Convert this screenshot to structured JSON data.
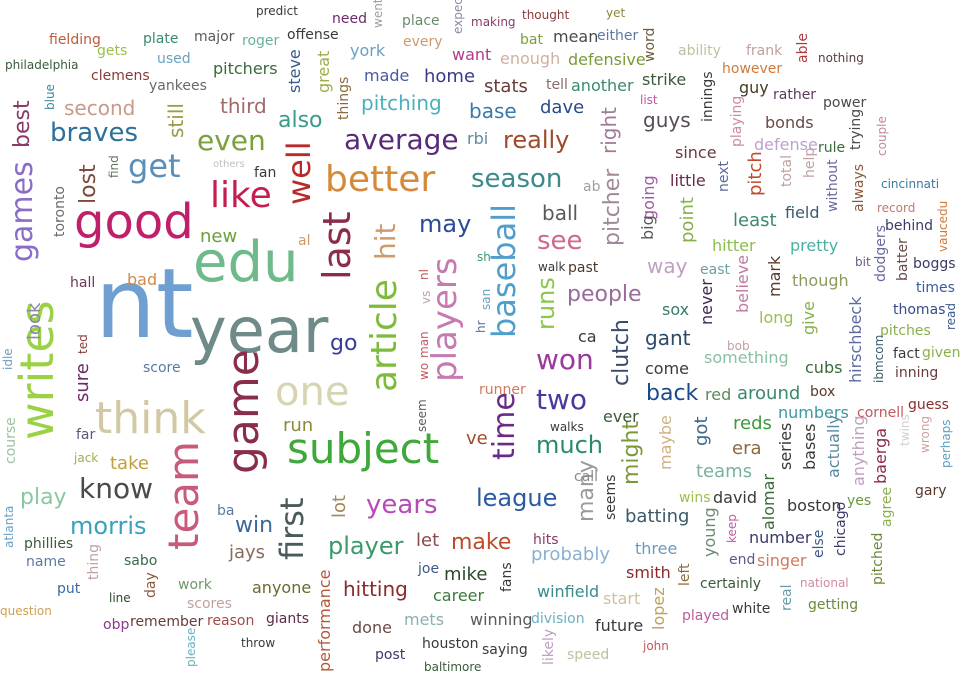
{
  "words": [
    {
      "text": "nt",
      "color": "#6f9fd0"
    },
    {
      "text": "edu",
      "color": "#6fba8a"
    },
    {
      "text": "year",
      "color": "#6e8a89"
    },
    {
      "text": "good",
      "color": "#c0206a"
    },
    {
      "text": "writes",
      "color": "#9bd144"
    },
    {
      "text": "subject",
      "color": "#3fa83a"
    },
    {
      "text": "think",
      "color": "#d2c9a4"
    },
    {
      "text": "game",
      "color": "#8a2d48"
    },
    {
      "text": "one",
      "color": "#d7d5b1"
    },
    {
      "text": "team",
      "color": "#c85a7a"
    },
    {
      "text": "like",
      "color": "#c41f4f"
    },
    {
      "text": "better",
      "color": "#d58a3a"
    },
    {
      "text": "article",
      "color": "#7cbc3a"
    },
    {
      "text": "players",
      "color": "#c57ab0"
    },
    {
      "text": "baseball",
      "color": "#4f9ecb"
    },
    {
      "text": "last",
      "color": "#8a2d48"
    },
    {
      "text": "games",
      "color": "#8a6cc9"
    },
    {
      "text": "get",
      "color": "#5a8fb8"
    },
    {
      "text": "well",
      "color": "#b92b2b"
    },
    {
      "text": "average",
      "color": "#5a2a7a"
    },
    {
      "text": "season",
      "color": "#3a8a8a"
    },
    {
      "text": "braves",
      "color": "#2f6f99"
    },
    {
      "text": "even",
      "color": "#7aa03a"
    },
    {
      "text": "know",
      "color": "#4a4a4a"
    },
    {
      "text": "time",
      "color": "#6a2a8a"
    },
    {
      "text": "two",
      "color": "#4a3aa0"
    },
    {
      "text": "won",
      "color": "#9a3a9a"
    },
    {
      "text": "league",
      "color": "#2a5aa0"
    },
    {
      "text": "much",
      "color": "#2a8a6a"
    },
    {
      "text": "years",
      "color": "#b84ab8"
    },
    {
      "text": "first",
      "color": "#4a5a5a"
    },
    {
      "text": "player",
      "color": "#3a9a6a"
    },
    {
      "text": "morris",
      "color": "#3aa0c0"
    },
    {
      "text": "runs",
      "color": "#8ac84a"
    },
    {
      "text": "see",
      "color": "#d06a8a"
    },
    {
      "text": "really",
      "color": "#a04a2a"
    },
    {
      "text": "people",
      "color": "#9a6a9a"
    },
    {
      "text": "clutch",
      "color": "#3a4a6a"
    },
    {
      "text": "hit",
      "color": "#d09a6a"
    },
    {
      "text": "may",
      "color": "#2a4a9a"
    },
    {
      "text": "back",
      "color": "#1a4a8a"
    },
    {
      "text": "make",
      "color": "#c04a2a"
    },
    {
      "text": "might",
      "color": "#7a9a3a"
    },
    {
      "text": "play",
      "color": "#8ac8a0"
    },
    {
      "text": "go",
      "color": "#3a3a9a"
    },
    {
      "text": "win",
      "color": "#3a6a9a"
    },
    {
      "text": "pitcher",
      "color": "#a08a9a"
    },
    {
      "text": "many",
      "color": "#9a9a9a"
    },
    {
      "text": "lost",
      "color": "#7a4a3a"
    },
    {
      "text": "ball",
      "color": "#5a5a5a"
    },
    {
      "text": "hitting",
      "color": "#8a2a2a"
    },
    {
      "text": "base",
      "color": "#3a7aaa"
    },
    {
      "text": "gant",
      "color": "#2a4a6a"
    },
    {
      "text": "also",
      "color": "#3a9a8a"
    },
    {
      "text": "best",
      "color": "#8a3a6a"
    },
    {
      "text": "second",
      "color": "#c89a8a"
    },
    {
      "text": "third",
      "color": "#a06a6a"
    },
    {
      "text": "still",
      "color": "#9a9a4a"
    },
    {
      "text": "new",
      "color": "#6aa03a"
    },
    {
      "text": "pitching",
      "color": "#4ab0c0"
    },
    {
      "text": "look",
      "color": "#8a8aaa"
    },
    {
      "text": "sure",
      "color": "#6a2a6a"
    },
    {
      "text": "take",
      "color": "#c0a03a"
    },
    {
      "text": "run",
      "color": "#8a8a3a"
    },
    {
      "text": "way",
      "color": "#c0a0c0"
    },
    {
      "text": "lot",
      "color": "#a08a5a"
    },
    {
      "text": "jays",
      "color": "#8a6a5a"
    },
    {
      "text": "let",
      "color": "#8a4a4a"
    },
    {
      "text": "mike",
      "color": "#2a4a2a"
    },
    {
      "text": "probably",
      "color": "#8ab0d0"
    },
    {
      "text": "stats",
      "color": "#6a3a3a"
    },
    {
      "text": "right",
      "color": "#a07a9a"
    },
    {
      "text": "dave",
      "color": "#2a4a8a"
    },
    {
      "text": "pretty",
      "color": "#4ab0a0"
    },
    {
      "text": "though",
      "color": "#8a9a5a"
    },
    {
      "text": "long",
      "color": "#9ac04a"
    },
    {
      "text": "around",
      "color": "#3a8a6a"
    },
    {
      "text": "something",
      "color": "#8ac0a0"
    },
    {
      "text": "reds",
      "color": "#3a9a3a"
    },
    {
      "text": "cubs",
      "color": "#3a6a3a"
    },
    {
      "text": "numbers",
      "color": "#3a9aa0"
    },
    {
      "text": "teams",
      "color": "#7ab0a0"
    },
    {
      "text": "batting",
      "color": "#3a5a6a"
    },
    {
      "text": "three",
      "color": "#6a9ac0"
    },
    {
      "text": "winfield",
      "color": "#3a8a8a"
    },
    {
      "text": "performance",
      "color": "#b05a3a"
    },
    {
      "text": "career",
      "color": "#3a7a3a"
    },
    {
      "text": "winning",
      "color": "#5a5a5a"
    },
    {
      "text": "division",
      "color": "#6ab0c0"
    },
    {
      "text": "future",
      "color": "#3a3a3a"
    },
    {
      "text": "smith",
      "color": "#8a2a2a"
    },
    {
      "text": "start",
      "color": "#d0c0a0"
    },
    {
      "text": "mets",
      "color": "#8ab0b0"
    },
    {
      "text": "done",
      "color": "#6a4a4a"
    },
    {
      "text": "anyone",
      "color": "#6a6a2a"
    },
    {
      "text": "giants",
      "color": "#5a2a4a"
    },
    {
      "text": "reason",
      "color": "#a04a4a"
    },
    {
      "text": "scores",
      "color": "#c0a0a0"
    },
    {
      "text": "work",
      "color": "#6a9a6a"
    },
    {
      "text": "remember",
      "color": "#6a3a3a"
    },
    {
      "text": "day",
      "color": "#8a5a3a"
    },
    {
      "text": "sabo",
      "color": "#3a6a4a"
    },
    {
      "text": "name",
      "color": "#5a7aa0"
    },
    {
      "text": "phillies",
      "color": "#3a5a3a"
    },
    {
      "text": "put",
      "color": "#3a6aa0"
    },
    {
      "text": "line",
      "color": "#2a4a2a"
    },
    {
      "text": "obp",
      "color": "#8a3a8a"
    },
    {
      "text": "question",
      "color": "#d0a050"
    },
    {
      "text": "course",
      "color": "#a0c0a0"
    },
    {
      "text": "far",
      "color": "#5a5a7a"
    },
    {
      "text": "score",
      "color": "#5a7aa0"
    },
    {
      "text": "hall",
      "color": "#6a3a5a"
    },
    {
      "text": "bad",
      "color": "#d08a4a"
    },
    {
      "text": "fan",
      "color": "#3a3a3a"
    },
    {
      "text": "al",
      "color": "#d09a6a"
    },
    {
      "text": "find",
      "color": "#5a7a5a"
    },
    {
      "text": "toronto",
      "color": "#6a6a6a"
    },
    {
      "text": "major",
      "color": "#5a5a5a"
    },
    {
      "text": "plate",
      "color": "#3a8a6a"
    },
    {
      "text": "fielding",
      "color": "#c05a3a"
    },
    {
      "text": "philadelphia",
      "color": "#3a5a3a"
    },
    {
      "text": "gets",
      "color": "#9ac04a"
    },
    {
      "text": "clemens",
      "color": "#8a3a3a"
    },
    {
      "text": "yankees",
      "color": "#6a6a6a"
    },
    {
      "text": "used",
      "color": "#6aa0c0"
    },
    {
      "text": "roger",
      "color": "#6ab0a0"
    },
    {
      "text": "pitchers",
      "color": "#3a6a3a"
    },
    {
      "text": "offense",
      "color": "#3a3a3a"
    },
    {
      "text": "predict",
      "color": "#3a3a3a"
    },
    {
      "text": "need",
      "color": "#6a2a6a"
    },
    {
      "text": "went",
      "color": "#a0a0a0"
    },
    {
      "text": "place",
      "color": "#6a8a6a"
    },
    {
      "text": "expect",
      "color": "#8a8aaa"
    },
    {
      "text": "making",
      "color": "#8a3a6a"
    },
    {
      "text": "thought",
      "color": "#8a3a3a"
    },
    {
      "text": "yet",
      "color": "#8a8a3a"
    },
    {
      "text": "york",
      "color": "#6aa0c0"
    },
    {
      "text": "every",
      "color": "#d09a6a"
    },
    {
      "text": "bat",
      "color": "#7aa03a"
    },
    {
      "text": "mean",
      "color": "#4a4a4a"
    },
    {
      "text": "either",
      "color": "#5a7aa0"
    },
    {
      "text": "want",
      "color": "#b03a8a"
    },
    {
      "text": "enough",
      "color": "#d0b0a0"
    },
    {
      "text": "defensive",
      "color": "#7a9a3a"
    },
    {
      "text": "steve",
      "color": "#3a5a8a"
    },
    {
      "text": "great",
      "color": "#9ab04a"
    },
    {
      "text": "made",
      "color": "#4a5aa0"
    },
    {
      "text": "home",
      "color": "#3a3a8a"
    },
    {
      "text": "things",
      "color": "#8a6a3a"
    },
    {
      "text": "word",
      "color": "#6a5a3a"
    },
    {
      "text": "ability",
      "color": "#c0c0a0"
    },
    {
      "text": "frank",
      "color": "#c0a0a0"
    },
    {
      "text": "able",
      "color": "#b03a3a"
    },
    {
      "text": "nothing",
      "color": "#5a3a3a"
    },
    {
      "text": "however",
      "color": "#d07a3a"
    },
    {
      "text": "guy",
      "color": "#4a3a2a"
    },
    {
      "text": "rather",
      "color": "#5a3a5a"
    },
    {
      "text": "power",
      "color": "#4a4a4a"
    },
    {
      "text": "another",
      "color": "#3a8a6a"
    },
    {
      "text": "strike",
      "color": "#3a5a3a"
    },
    {
      "text": "list",
      "color": "#c05aa0"
    },
    {
      "text": "innings",
      "color": "#3a3a3a"
    },
    {
      "text": "playing",
      "color": "#d08aa0"
    },
    {
      "text": "bonds",
      "color": "#6a4a4a"
    },
    {
      "text": "defense",
      "color": "#c0a0d0"
    },
    {
      "text": "rule",
      "color": "#3a6a3a"
    },
    {
      "text": "trying",
      "color": "#4a4a4a"
    },
    {
      "text": "couple",
      "color": "#c08aa0"
    },
    {
      "text": "tell",
      "color": "#8a6a6a"
    },
    {
      "text": "rbi",
      "color": "#5a8aa0"
    },
    {
      "text": "guys",
      "color": "#5a4a5a"
    },
    {
      "text": "since",
      "color": "#6a3a3a"
    },
    {
      "text": "pitch",
      "color": "#c04a2a"
    },
    {
      "text": "total",
      "color": "#c0a0a0"
    },
    {
      "text": "help",
      "color": "#c0a0a0"
    },
    {
      "text": "without",
      "color": "#6a6aa0"
    },
    {
      "text": "always",
      "color": "#8a5a3a"
    },
    {
      "text": "cincinnati",
      "color": "#3a7aa0"
    },
    {
      "text": "ab",
      "color": "#a0a0a0"
    },
    {
      "text": "going",
      "color": "#a05aa0"
    },
    {
      "text": "little",
      "color": "#6a2a4a"
    },
    {
      "text": "next",
      "color": "#5a6aa0"
    },
    {
      "text": "field",
      "color": "#3a5a6a"
    },
    {
      "text": "record",
      "color": "#c07a6a"
    },
    {
      "text": "behind",
      "color": "#3a3a6a"
    },
    {
      "text": "others",
      "color": "#c0c0c0"
    },
    {
      "text": "big",
      "color": "#5a5a5a"
    },
    {
      "text": "point",
      "color": "#8ab04a"
    },
    {
      "text": "least",
      "color": "#3a8a6a"
    },
    {
      "text": "hitter",
      "color": "#8ac04a"
    },
    {
      "text": "dodgers",
      "color": "#6a6aa0"
    },
    {
      "text": "bit",
      "color": "#6a5a8a"
    },
    {
      "text": "batter",
      "color": "#6a4a4a"
    },
    {
      "text": "boggs",
      "color": "#3a3a6a"
    },
    {
      "text": "times",
      "color": "#3a5aa0"
    },
    {
      "text": "vaucedu",
      "color": "#d07a3a"
    },
    {
      "text": "sh",
      "color": "#3a9a6a"
    },
    {
      "text": "walk",
      "color": "#3a3a3a"
    },
    {
      "text": "past",
      "color": "#4a3a2a"
    },
    {
      "text": "east",
      "color": "#6aa0a0"
    },
    {
      "text": "believe",
      "color": "#c07aa0"
    },
    {
      "text": "mark",
      "color": "#5a3a2a"
    },
    {
      "text": "sox",
      "color": "#3a7a6a"
    },
    {
      "text": "never",
      "color": "#3a2a4a"
    },
    {
      "text": "give",
      "color": "#8ab04a"
    },
    {
      "text": "hirschbeck",
      "color": "#5a6aa0"
    },
    {
      "text": "thomas",
      "color": "#3a4a8a"
    },
    {
      "text": "pitches",
      "color": "#8ab04a"
    },
    {
      "text": "read",
      "color": "#3a5a8a"
    },
    {
      "text": "nl",
      "color": "#c05a5a"
    },
    {
      "text": "vs",
      "color": "#c0a0a0"
    },
    {
      "text": "san",
      "color": "#6aa0c0"
    },
    {
      "text": "hr",
      "color": "#5a6aa0"
    },
    {
      "text": "man",
      "color": "#c05a5a"
    },
    {
      "text": "wo",
      "color": "#c05a5a"
    },
    {
      "text": "ted",
      "color": "#8a3a3a"
    },
    {
      "text": "idle",
      "color": "#6aa0c0"
    },
    {
      "text": "ca",
      "color": "#3a3a3a"
    },
    {
      "text": "come",
      "color": "#3a3a3a"
    },
    {
      "text": "bob",
      "color": "#c0a0a0"
    },
    {
      "text": "fact",
      "color": "#3a3a3a"
    },
    {
      "text": "given",
      "color": "#8ab04a"
    },
    {
      "text": "ibmcom",
      "color": "#3a5a6a"
    },
    {
      "text": "inning",
      "color": "#6a3a3a"
    },
    {
      "text": "red",
      "color": "#5a8a5a"
    },
    {
      "text": "box",
      "color": "#5a3a2a"
    },
    {
      "text": "runner",
      "color": "#d07a5a"
    },
    {
      "text": "seem",
      "color": "#5a5a5a"
    },
    {
      "text": "guess",
      "color": "#8a2a2a"
    },
    {
      "text": "ever",
      "color": "#3a5a3a"
    },
    {
      "text": "walks",
      "color": "#3a3a3a"
    },
    {
      "text": "ve",
      "color": "#a04a2a"
    },
    {
      "text": "got",
      "color": "#3a6a8a"
    },
    {
      "text": "maybe",
      "color": "#d0b080"
    },
    {
      "text": "era",
      "color": "#8a6a3a"
    },
    {
      "text": "series",
      "color": "#3a3a3a"
    },
    {
      "text": "bases",
      "color": "#3a3a3a"
    },
    {
      "text": "actually",
      "color": "#5a8aa0"
    },
    {
      "text": "anything",
      "color": "#c0a0c0"
    },
    {
      "text": "cornell",
      "color": "#c05a5a"
    },
    {
      "text": "twins",
      "color": "#d0d0d0"
    },
    {
      "text": "wrong",
      "color": "#d0a0a0"
    },
    {
      "text": "perhaps",
      "color": "#5aa0c0"
    },
    {
      "text": "baerga",
      "color": "#8a2a4a"
    },
    {
      "text": "jack",
      "color": "#9ab04a"
    },
    {
      "text": "call",
      "color": "#8a8a8a"
    },
    {
      "text": "seems",
      "color": "#3a3a3a"
    },
    {
      "text": "wins",
      "color": "#9ac04a"
    },
    {
      "text": "david",
      "color": "#3a3a3a"
    },
    {
      "text": "alomar",
      "color": "#3a6a3a"
    },
    {
      "text": "boston",
      "color": "#3a3a3a"
    },
    {
      "text": "yes",
      "color": "#6a9a3a"
    },
    {
      "text": "gary",
      "color": "#5a3a2a"
    },
    {
      "text": "agree",
      "color": "#8ab04a"
    },
    {
      "text": "young",
      "color": "#6a8a6a"
    },
    {
      "text": "keep",
      "color": "#c05aa0"
    },
    {
      "text": "number",
      "color": "#3a3a6a"
    },
    {
      "text": "else",
      "color": "#3a5a8a"
    },
    {
      "text": "chicago",
      "color": "#3a3a6a"
    },
    {
      "text": "end",
      "color": "#5a5a8a"
    },
    {
      "text": "singer",
      "color": "#d07a5a"
    },
    {
      "text": "pitched",
      "color": "#6a8a3a"
    },
    {
      "text": "atlanta",
      "color": "#6aa0c0"
    },
    {
      "text": "thing",
      "color": "#c0a0a0"
    },
    {
      "text": "ba",
      "color": "#5a7aa0"
    },
    {
      "text": "joe",
      "color": "#3a5a8a"
    },
    {
      "text": "hits",
      "color": "#8a3a6a"
    },
    {
      "text": "fans",
      "color": "#3a3a3a"
    },
    {
      "text": "lopez",
      "color": "#c0a05a"
    },
    {
      "text": "left",
      "color": "#8a6a3a"
    },
    {
      "text": "certainly",
      "color": "#3a5a3a"
    },
    {
      "text": "national",
      "color": "#d08aa0"
    },
    {
      "text": "real",
      "color": "#6a9aaa"
    },
    {
      "text": "getting",
      "color": "#6a8a3a"
    },
    {
      "text": "played",
      "color": "#c05aa0"
    },
    {
      "text": "white",
      "color": "#3a3a3a"
    },
    {
      "text": "throw",
      "color": "#3a3a3a"
    },
    {
      "text": "please",
      "color": "#6ab0c0"
    },
    {
      "text": "houston",
      "color": "#3a3a3a"
    },
    {
      "text": "saying",
      "color": "#3a3a3a"
    },
    {
      "text": "likely",
      "color": "#c0a0c0"
    },
    {
      "text": "speed",
      "color": "#c0c0a0"
    },
    {
      "text": "john",
      "color": "#c05a5a"
    },
    {
      "text": "post",
      "color": "#3a3a6a"
    },
    {
      "text": "baltimore",
      "color": "#3a5a3a"
    },
    {
      "text": "blue",
      "color": "#3a8aa0"
    }
  ]
}
